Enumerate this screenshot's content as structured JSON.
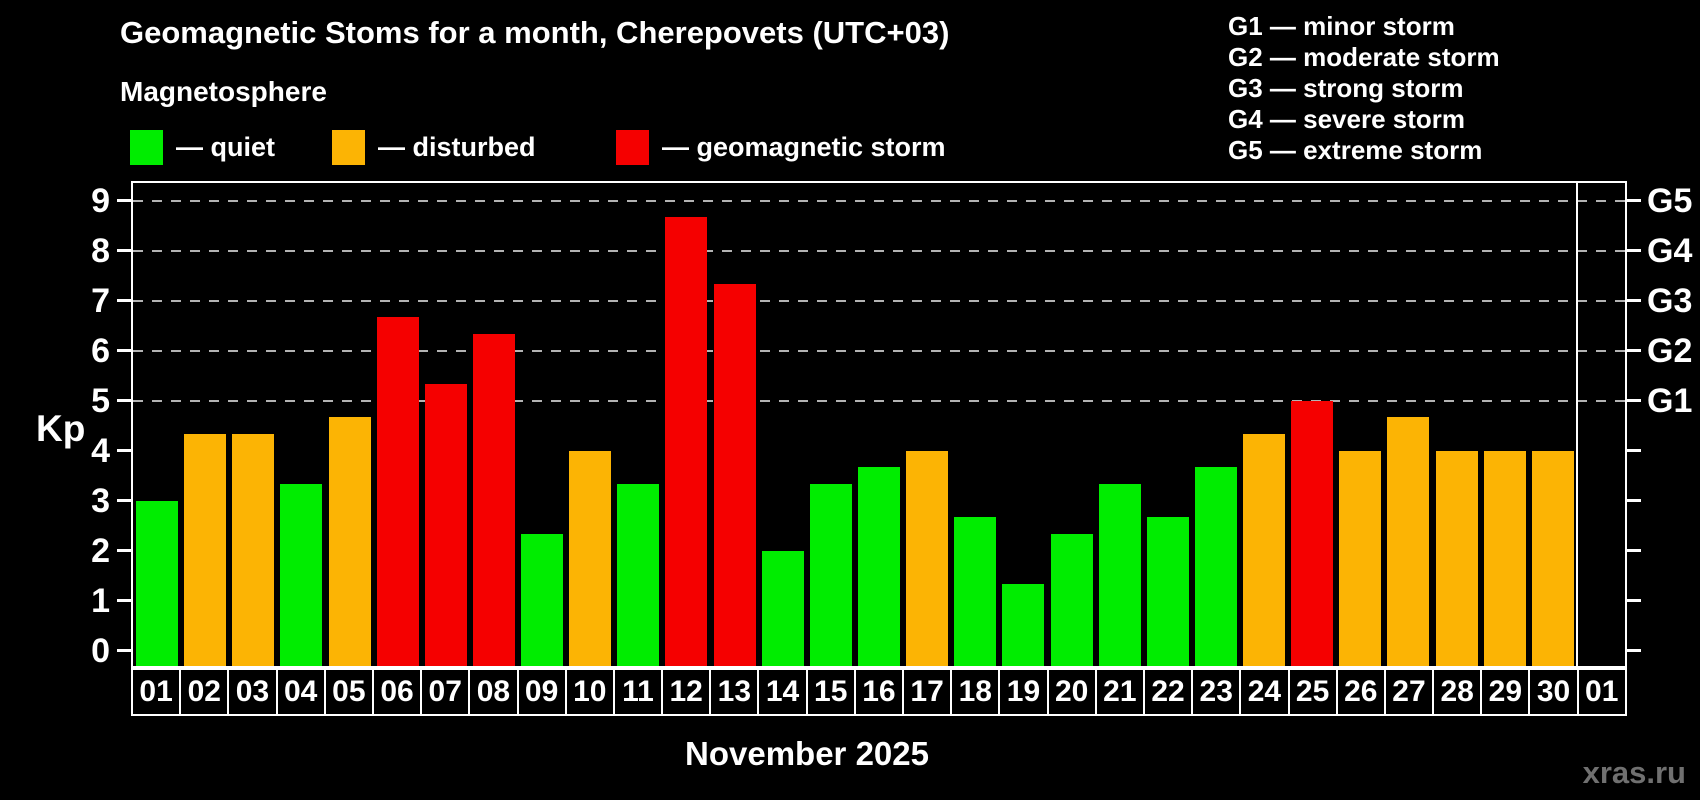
{
  "header": {
    "title": "Geomagnetic Stoms for a month, Cherepovets (UTC+03)",
    "subtitle": "Magnetosphere"
  },
  "legend": {
    "items": [
      {
        "key": "quiet",
        "label": "— quiet",
        "color": "#00ed00"
      },
      {
        "key": "disturbed",
        "label": "— disturbed",
        "color": "#fcb404"
      },
      {
        "key": "storm",
        "label": "— geomagnetic storm",
        "color": "#f50000"
      }
    ]
  },
  "storm_scale_legend": [
    "G1 — minor storm",
    "G2 — moderate storm",
    "G3 — strong storm",
    "G4 — severe storm",
    "G5 — extreme storm"
  ],
  "chart_data": {
    "type": "bar",
    "title": "Geomagnetic Stoms for a month, Cherepovets (UTC+03)",
    "ylabel": "Kp",
    "xlabel": "November 2025",
    "ylim": [
      0,
      9
    ],
    "y_ticks": [
      0,
      1,
      2,
      3,
      4,
      5,
      6,
      7,
      8,
      9
    ],
    "gridlines_at_kp": [
      5,
      6,
      7,
      8,
      9
    ],
    "grid_style": "dashed",
    "legend_position": "top",
    "right_axis": [
      {
        "label": "G1",
        "kp": 5
      },
      {
        "label": "G2",
        "kp": 6
      },
      {
        "label": "G3",
        "kp": 7
      },
      {
        "label": "G4",
        "kp": 8
      },
      {
        "label": "G5",
        "kp": 9
      }
    ],
    "month_boundary_after_index": 29,
    "days": [
      {
        "day": "01",
        "kp": 3.0,
        "status": "quiet"
      },
      {
        "day": "02",
        "kp": 4.33,
        "status": "disturbed"
      },
      {
        "day": "03",
        "kp": 4.33,
        "status": "disturbed"
      },
      {
        "day": "04",
        "kp": 3.33,
        "status": "quiet"
      },
      {
        "day": "05",
        "kp": 4.67,
        "status": "disturbed"
      },
      {
        "day": "06",
        "kp": 6.67,
        "status": "storm"
      },
      {
        "day": "07",
        "kp": 5.33,
        "status": "storm"
      },
      {
        "day": "08",
        "kp": 6.33,
        "status": "storm"
      },
      {
        "day": "09",
        "kp": 2.33,
        "status": "quiet"
      },
      {
        "day": "10",
        "kp": 4.0,
        "status": "disturbed"
      },
      {
        "day": "11",
        "kp": 3.33,
        "status": "quiet"
      },
      {
        "day": "12",
        "kp": 8.67,
        "status": "storm"
      },
      {
        "day": "13",
        "kp": 7.33,
        "status": "storm"
      },
      {
        "day": "14",
        "kp": 2.0,
        "status": "quiet"
      },
      {
        "day": "15",
        "kp": 3.33,
        "status": "quiet"
      },
      {
        "day": "16",
        "kp": 3.67,
        "status": "quiet"
      },
      {
        "day": "17",
        "kp": 4.0,
        "status": "disturbed"
      },
      {
        "day": "18",
        "kp": 2.67,
        "status": "quiet"
      },
      {
        "day": "19",
        "kp": 1.33,
        "status": "quiet"
      },
      {
        "day": "20",
        "kp": 2.33,
        "status": "quiet"
      },
      {
        "day": "21",
        "kp": 3.33,
        "status": "quiet"
      },
      {
        "day": "22",
        "kp": 2.67,
        "status": "quiet"
      },
      {
        "day": "23",
        "kp": 3.67,
        "status": "quiet"
      },
      {
        "day": "24",
        "kp": 4.33,
        "status": "disturbed"
      },
      {
        "day": "25",
        "kp": 5.0,
        "status": "storm"
      },
      {
        "day": "26",
        "kp": 4.0,
        "status": "disturbed"
      },
      {
        "day": "27",
        "kp": 4.67,
        "status": "disturbed"
      },
      {
        "day": "28",
        "kp": 4.0,
        "status": "disturbed"
      },
      {
        "day": "29",
        "kp": 4.0,
        "status": "disturbed"
      },
      {
        "day": "30",
        "kp": 4.0,
        "status": "disturbed"
      },
      {
        "day": "01",
        "kp": null,
        "status": null
      }
    ]
  },
  "footer": {
    "month_label": "November 2025",
    "watermark": "xras.ru"
  },
  "colors": {
    "background": "#000000",
    "text": "#ffffff",
    "grid": "#b3b3b3",
    "watermark": "#707070"
  }
}
